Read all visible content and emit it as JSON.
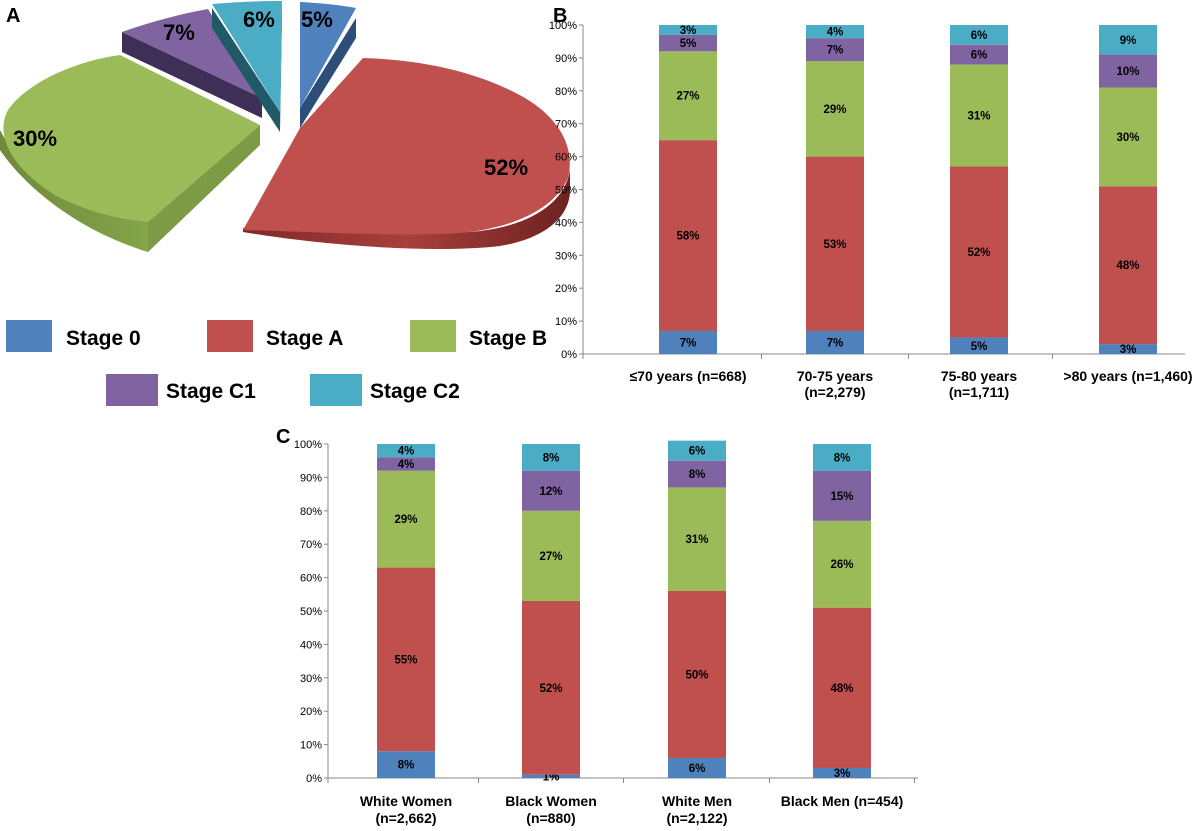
{
  "series_names": [
    "Stage 0",
    "Stage A",
    "Stage B",
    "Stage C1",
    "Stage C2"
  ],
  "colors": {
    "Stage 0": "#4f81bd",
    "Stage A": "#c0504d",
    "Stage B": "#9bbb59",
    "Stage C1": "#8064a2",
    "Stage C2": "#4bacc6"
  },
  "chart_data": [
    {
      "panel": "A",
      "type": "pie",
      "labels": [
        "Stage 0",
        "Stage A",
        "Stage B",
        "Stage C1",
        "Stage C2"
      ],
      "values": [
        5,
        52,
        30,
        7,
        6
      ],
      "value_labels": [
        "5%",
        "52%",
        "30%",
        "7%",
        "6%"
      ],
      "style": "3d-exploded",
      "legend": "bottom"
    },
    {
      "panel": "B",
      "type": "bar",
      "stacked": true,
      "categories": [
        [
          "≤70 years (n=668)"
        ],
        [
          "70-75 years",
          "(n=2,279)"
        ],
        [
          "75-80 years",
          "(n=1,711)"
        ],
        [
          ">80 years (n=1,460)"
        ]
      ],
      "yticks": [
        "0%",
        "10%",
        "20%",
        "30%",
        "40%",
        "50%",
        "60%",
        "70%",
        "80%",
        "90%",
        "100%"
      ],
      "ylim": [
        0,
        100
      ],
      "series": [
        {
          "name": "Stage 0",
          "values": [
            7,
            7,
            5,
            3
          ],
          "labels": [
            "7%",
            "7%",
            "5%",
            "3%"
          ]
        },
        {
          "name": "Stage A",
          "values": [
            58,
            53,
            52,
            48
          ],
          "labels": [
            "58%",
            "53%",
            "52%",
            "48%"
          ]
        },
        {
          "name": "Stage B",
          "values": [
            27,
            29,
            31,
            30
          ],
          "labels": [
            "27%",
            "29%",
            "31%",
            "30%"
          ]
        },
        {
          "name": "Stage C1",
          "values": [
            5,
            7,
            6,
            10
          ],
          "labels": [
            "5%",
            "7%",
            "6%",
            "10%"
          ]
        },
        {
          "name": "Stage C2",
          "values": [
            3,
            4,
            6,
            9
          ],
          "labels": [
            "3%",
            "4%",
            "6%",
            "9%"
          ]
        }
      ]
    },
    {
      "panel": "C",
      "type": "bar",
      "stacked": true,
      "categories": [
        [
          "White Women",
          "(n=2,662)"
        ],
        [
          "Black Women",
          "(n=880)"
        ],
        [
          "White Men",
          "(n=2,122)"
        ],
        [
          "Black Men (n=454)"
        ]
      ],
      "yticks": [
        "0%",
        "10%",
        "20%",
        "30%",
        "40%",
        "50%",
        "60%",
        "70%",
        "80%",
        "90%",
        "100%"
      ],
      "ylim": [
        0,
        100
      ],
      "series": [
        {
          "name": "Stage 0",
          "values": [
            8,
            1,
            6,
            3
          ],
          "labels": [
            "8%",
            "1%",
            "6%",
            "3%"
          ]
        },
        {
          "name": "Stage A",
          "values": [
            55,
            52,
            50,
            48
          ],
          "labels": [
            "55%",
            "52%",
            "50%",
            "48%"
          ]
        },
        {
          "name": "Stage B",
          "values": [
            29,
            27,
            31,
            26
          ],
          "labels": [
            "29%",
            "27%",
            "31%",
            "26%"
          ]
        },
        {
          "name": "Stage C1",
          "values": [
            4,
            12,
            8,
            15
          ],
          "labels": [
            "4%",
            "12%",
            "8%",
            "15%"
          ]
        },
        {
          "name": "Stage C2",
          "values": [
            4,
            8,
            6,
            8
          ],
          "labels": [
            "4%",
            "8%",
            "6%",
            "8%"
          ]
        }
      ]
    }
  ]
}
